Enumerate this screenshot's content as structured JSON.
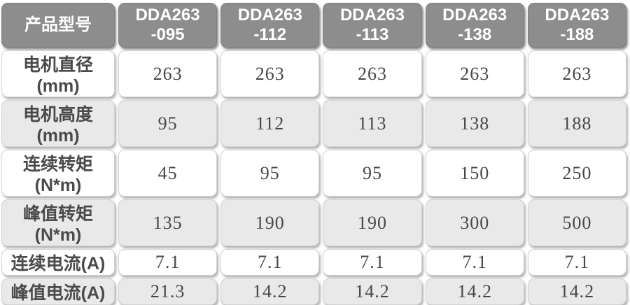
{
  "table": {
    "corner_label": "产品型号",
    "model_headers": [
      "DDA263\n-095",
      "DDA263\n-112",
      "DDA263\n-113",
      "DDA263\n-138",
      "DDA263\n-188"
    ],
    "rows": [
      {
        "label": "电机直径(mm)",
        "values": [
          "263",
          "263",
          "263",
          "263",
          "263"
        ]
      },
      {
        "label": "电机高度(mm)",
        "values": [
          "95",
          "112",
          "113",
          "138",
          "188"
        ]
      },
      {
        "label": "连续转矩(N*m)",
        "values": [
          "45",
          "95",
          "95",
          "150",
          "250"
        ]
      },
      {
        "label": "峰值转矩(N*m)",
        "values": [
          "135",
          "190",
          "190",
          "300",
          "500"
        ]
      },
      {
        "label": "连续电流(A)",
        "values": [
          "7.1",
          "7.1",
          "7.1",
          "7.1",
          "7.1"
        ]
      },
      {
        "label": "峰值电流(A)",
        "values": [
          "21.3",
          "14.2",
          "14.2",
          "14.2",
          "14.2"
        ]
      }
    ],
    "colors": {
      "header_bg": "#8d8d8d",
      "header_text": "#ffffff",
      "cell_text": "#4a4a4a",
      "row_bg": "#ffffff",
      "row_alt_bg": "#e9e9e9"
    }
  },
  "chart_data": {
    "type": "table",
    "columns": [
      "产品型号",
      "DDA263-095",
      "DDA263-112",
      "DDA263-113",
      "DDA263-138",
      "DDA263-188"
    ],
    "rows": [
      [
        "电机直径(mm)",
        263,
        263,
        263,
        263,
        263
      ],
      [
        "电机高度(mm)",
        95,
        112,
        113,
        138,
        188
      ],
      [
        "连续转矩(N*m)",
        45,
        95,
        95,
        150,
        250
      ],
      [
        "峰值转矩(N*m)",
        135,
        190,
        190,
        300,
        500
      ],
      [
        "连续电流(A)",
        7.1,
        7.1,
        7.1,
        7.1,
        7.1
      ],
      [
        "峰值电流(A)",
        21.3,
        14.2,
        14.2,
        14.2,
        14.2
      ]
    ]
  }
}
